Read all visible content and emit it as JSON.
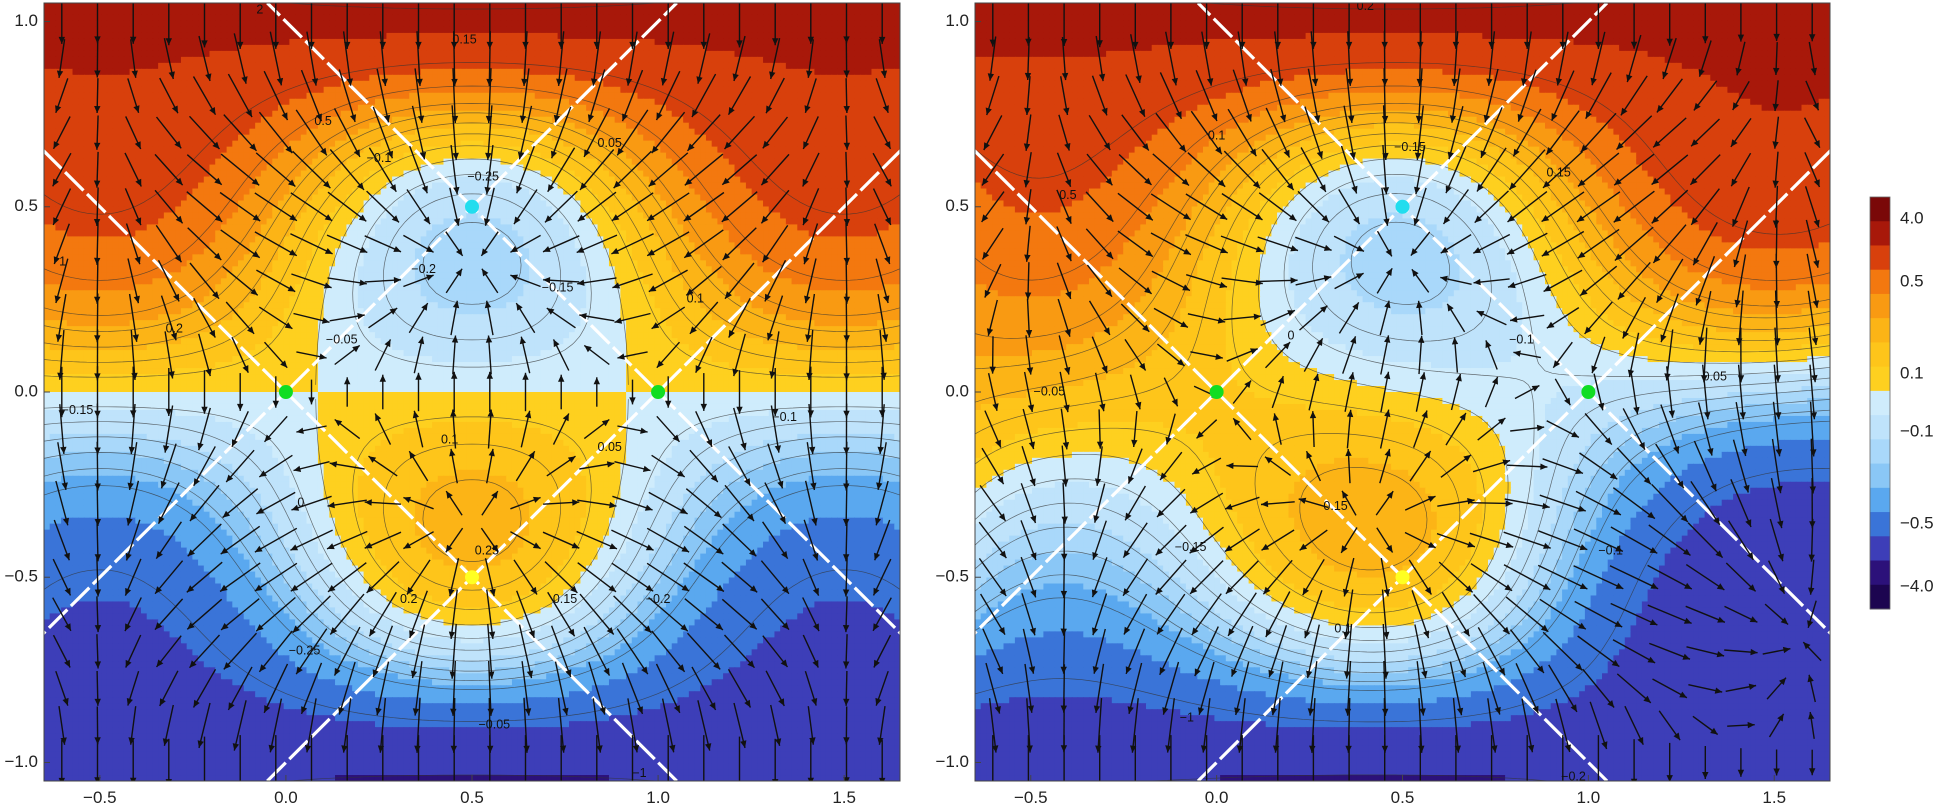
{
  "chart_data": {
    "type": "heatmap",
    "panels": [
      {
        "name": "left",
        "xlim": [
          -0.65,
          1.65
        ],
        "ylim": [
          -1.05,
          1.05
        ],
        "x_ticks": [
          "-0.5",
          "0.0",
          "0.5",
          "1.0",
          "1.5"
        ],
        "y_ticks": [
          "1.0",
          "0.5",
          "0.0",
          "-0.5",
          "-1.0"
        ],
        "critical_points": [
          {
            "x": 0.5,
            "y": 0.5,
            "kind": "minimum",
            "color": "#22ddee"
          },
          {
            "x": 0.5,
            "y": -0.5,
            "kind": "maximum",
            "color": "#ffff22"
          },
          {
            "x": 0.0,
            "y": 0.0,
            "kind": "saddle",
            "color": "#11dd22"
          },
          {
            "x": 1.0,
            "y": 0.0,
            "kind": "saddle",
            "color": "#11dd22"
          }
        ],
        "contour_labels": [
          {
            "x": 0.48,
            "y": 0.95,
            "text": "0.15"
          },
          {
            "x": 0.1,
            "y": 0.73,
            "text": "0.5"
          },
          {
            "x": 0.87,
            "y": 0.67,
            "text": "0.05"
          },
          {
            "x": 0.25,
            "y": 0.63,
            "text": "−0.1"
          },
          {
            "x": 0.53,
            "y": 0.58,
            "text": "−0.25"
          },
          {
            "x": -0.6,
            "y": 0.35,
            "text": "1"
          },
          {
            "x": 0.37,
            "y": 0.33,
            "text": "−0.2"
          },
          {
            "x": 0.73,
            "y": 0.28,
            "text": "−0.15"
          },
          {
            "x": 1.1,
            "y": 0.25,
            "text": "0.1"
          },
          {
            "x": -0.3,
            "y": 0.17,
            "text": "0.2"
          },
          {
            "x": 0.15,
            "y": 0.14,
            "text": "−0.05"
          },
          {
            "x": -0.56,
            "y": -0.05,
            "text": "−0.15"
          },
          {
            "x": 1.34,
            "y": -0.07,
            "text": "−0.1"
          },
          {
            "x": 0.44,
            "y": -0.13,
            "text": "0.1"
          },
          {
            "x": 0.87,
            "y": -0.15,
            "text": "0.05"
          },
          {
            "x": 0.04,
            "y": -0.3,
            "text": "0"
          },
          {
            "x": 0.54,
            "y": -0.43,
            "text": "0.25"
          },
          {
            "x": 0.33,
            "y": -0.56,
            "text": "0.2"
          },
          {
            "x": 0.75,
            "y": -0.56,
            "text": "0.15"
          },
          {
            "x": 1.0,
            "y": -0.56,
            "text": "−0.2"
          },
          {
            "x": 0.05,
            "y": -0.7,
            "text": "−0.25"
          },
          {
            "x": 0.56,
            "y": -0.9,
            "text": "−0.05"
          },
          {
            "x": 0.95,
            "y": -1.03,
            "text": "−1"
          },
          {
            "x": -0.07,
            "y": 1.03,
            "text": "2"
          }
        ]
      },
      {
        "name": "right",
        "xlim": [
          -0.65,
          1.65
        ],
        "ylim": [
          -1.05,
          1.05
        ],
        "x_ticks": [
          "-0.5",
          "0.0",
          "0.5",
          "1.0",
          "1.5"
        ],
        "y_ticks": [
          "1.0",
          "0.5",
          "0.0",
          "-0.5",
          "-1.0"
        ],
        "critical_points": [
          {
            "x": 0.5,
            "y": 0.5,
            "kind": "minimum",
            "color": "#22ddee"
          },
          {
            "x": 0.5,
            "y": -0.5,
            "kind": "maximum",
            "color": "#ffff22"
          },
          {
            "x": 0.0,
            "y": 0.0,
            "kind": "saddle",
            "color": "#11dd22"
          },
          {
            "x": 1.0,
            "y": 0.0,
            "kind": "saddle",
            "color": "#11dd22"
          }
        ],
        "contour_labels": [
          {
            "x": 0.4,
            "y": 1.04,
            "text": "0.2"
          },
          {
            "x": 0.0,
            "y": 0.69,
            "text": "0.1"
          },
          {
            "x": 0.52,
            "y": 0.66,
            "text": "−0.15"
          },
          {
            "x": 0.92,
            "y": 0.59,
            "text": "0.15"
          },
          {
            "x": -0.4,
            "y": 0.53,
            "text": "0.5"
          },
          {
            "x": 0.2,
            "y": 0.15,
            "text": "0"
          },
          {
            "x": 0.82,
            "y": 0.14,
            "text": "−0.1"
          },
          {
            "x": 1.34,
            "y": 0.04,
            "text": "0.05"
          },
          {
            "x": -0.45,
            "y": 0.0,
            "text": "−0.05"
          },
          {
            "x": 0.32,
            "y": -0.31,
            "text": "0.15"
          },
          {
            "x": -0.07,
            "y": -0.42,
            "text": "−0.15"
          },
          {
            "x": 1.06,
            "y": -0.43,
            "text": "−0.1"
          },
          {
            "x": 0.34,
            "y": -0.64,
            "text": "0.1"
          },
          {
            "x": -0.08,
            "y": -0.88,
            "text": "−1"
          },
          {
            "x": 0.96,
            "y": -1.04,
            "text": "−0.2"
          }
        ]
      }
    ],
    "colorbar": {
      "tick_labels": [
        "4.0",
        "0.5",
        "0.1",
        "−0.1",
        "−0.5",
        "−4.0"
      ],
      "colors": [
        "#7a0808",
        "#a8180a",
        "#d8400c",
        "#f3780f",
        "#f99a12",
        "#fcb416",
        "#fec51a",
        "#fed01f",
        "#cfecfc",
        "#bfe3fb",
        "#a9d8fa",
        "#8ac7f6",
        "#5aa8ef",
        "#3a74d8",
        "#3d3eb8",
        "#2c117a",
        "#1c0550"
      ]
    }
  }
}
